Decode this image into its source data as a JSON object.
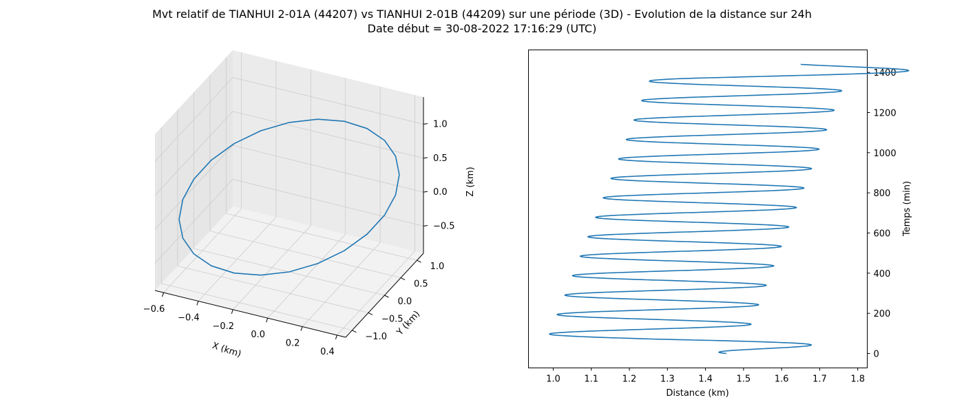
{
  "title": {
    "line1": "Mvt relatif de TIANHUI 2-01A (44207) vs TIANHUI 2-01B (44209) sur une période (3D) - Evolution de la distance sur 24h",
    "line2": "Date début = 30-08-2022 17:16:29 (UTC)"
  },
  "colors": {
    "series": "#1f77b4",
    "pane": "#f2f2f2",
    "grid": "#cccccc"
  },
  "chart_data": [
    {
      "type": "line",
      "projection": "3d",
      "xlabel": "X (km)",
      "ylabel": "Y (km)",
      "zlabel": "Z (km)",
      "x_ticks": [
        "−0.6",
        "−0.4",
        "−0.2",
        "0.0",
        "0.2",
        "0.4"
      ],
      "y_ticks": [
        "−1.0",
        "−0.5",
        "0.0",
        "0.5",
        "1.0"
      ],
      "z_ticks": [
        "−0.5",
        "0.0",
        "0.5",
        "1.0"
      ],
      "xlim": [
        -0.65,
        0.45
      ],
      "ylim": [
        -1.2,
        1.2
      ],
      "zlim": [
        -0.9,
        1.4
      ],
      "grid": true,
      "orbit": {
        "x_center": -0.1,
        "x_amplitude": 0.42,
        "y_amplitude": 1.15,
        "z_center": 0.2,
        "z_amplitude": 1.1,
        "points_per_revolution": 24
      }
    },
    {
      "type": "line",
      "xlabel": "Distance (km)",
      "ylabel": "Temps (min)",
      "y_axis_side": "right",
      "x_ticks": [
        "1.0",
        "1.1",
        "1.2",
        "1.3",
        "1.4",
        "1.5",
        "1.6",
        "1.7",
        "1.8"
      ],
      "y_ticks": [
        "0",
        "200",
        "400",
        "600",
        "800",
        "1000",
        "1200",
        "1400"
      ],
      "xlim": [
        0.935,
        1.825
      ],
      "ylim": [
        -72,
        1512
      ],
      "grid": false,
      "series": [
        {
          "start": {
            "time": 0,
            "distance": 1.455
          },
          "end": {
            "time": 1440,
            "distance": 1.65
          },
          "period_min": 96.9,
          "min_distance_start": 0.97,
          "min_distance_end": 1.27,
          "max_distance_start": 1.49,
          "max_distance_end": 1.785
        }
      ]
    }
  ]
}
